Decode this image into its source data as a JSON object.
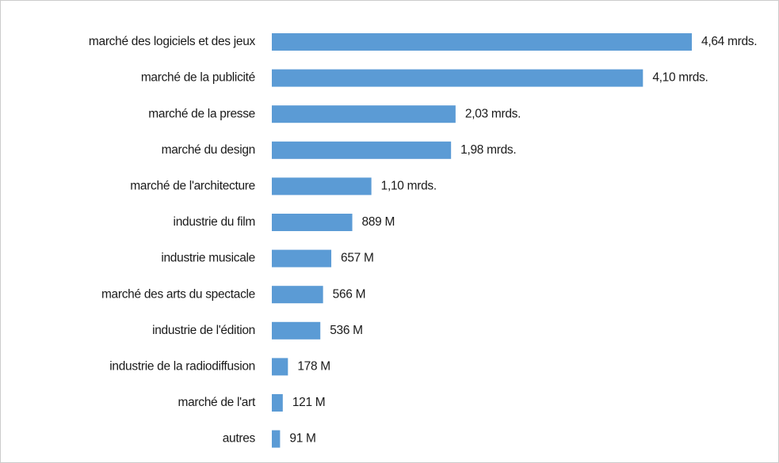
{
  "chart_data": {
    "type": "bar",
    "orientation": "horizontal",
    "categories": [
      "marché des logiciels et des jeux",
      "marché de la publicité",
      "marché de la presse",
      "marché du design",
      "marché de l'architecture",
      "industrie du film",
      "industrie musicale",
      "marché des arts du spectacle",
      "industrie de l'édition",
      "industrie de la radiodiffusion",
      "marché de l'art",
      "autres"
    ],
    "values": [
      4640,
      4100,
      2030,
      1980,
      1100,
      889,
      657,
      566,
      536,
      178,
      121,
      91
    ],
    "value_labels": [
      "4,64 mrds.",
      "4,10 mrds.",
      "2,03 mrds.",
      "1,98 mrds.",
      "1,10 mrds.",
      "889 M",
      "657 M",
      "566 M",
      "536 M",
      "178 M",
      "121 M",
      "91 M"
    ],
    "color": "#5b9bd5"
  }
}
